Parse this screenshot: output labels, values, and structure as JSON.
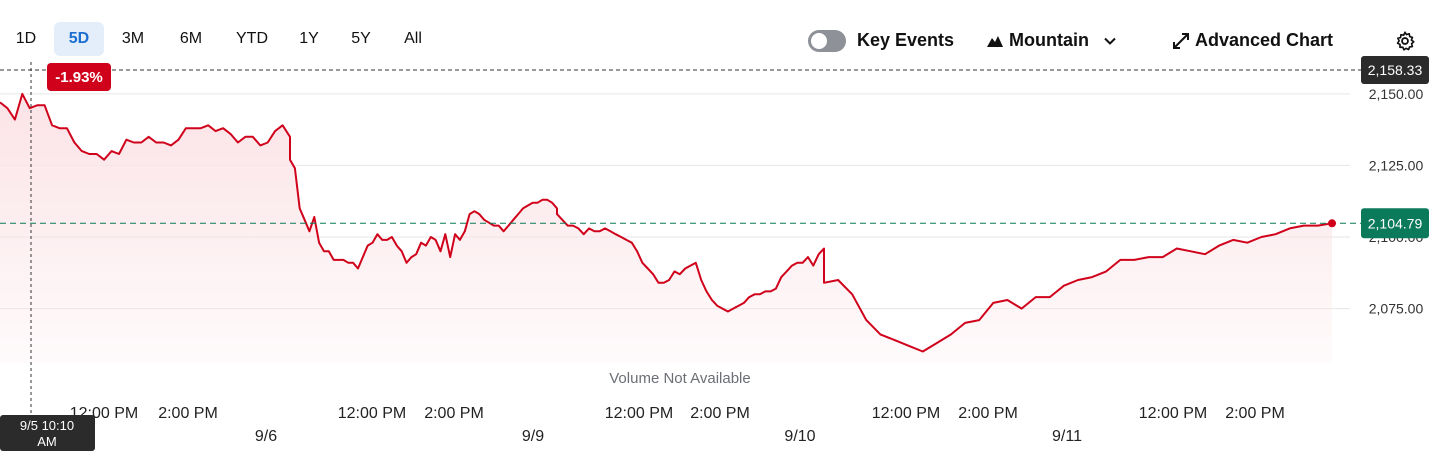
{
  "toolbar": {
    "ranges": [
      "1D",
      "5D",
      "3M",
      "6M",
      "YTD",
      "1Y",
      "5Y",
      "All"
    ],
    "active_range": "5D",
    "key_events_label": "Key Events",
    "chart_type_label": "Mountain",
    "advanced_chart_label": "Advanced Chart",
    "icons": [
      "toggle-switch",
      "mountain-icon",
      "chevron-down-icon",
      "expand-arrows-icon",
      "gear-icon"
    ]
  },
  "colors": {
    "line": "#d0021b",
    "fill": "#fbe3e6",
    "current_badge": "#0b7a5a",
    "change_badge": "#d0021b",
    "hover_badge": "#2b2b2b",
    "active_tab_bg": "#e3eefa",
    "active_tab_text": "#1a6fd0"
  },
  "chart_data": {
    "type": "area",
    "x_axis_type": "time",
    "y_range": [
      2056,
      2158.33
    ],
    "y_ticks": [
      "2,150.00",
      "2,125.00",
      "2,100.00",
      "2,075.00"
    ],
    "day_labels": [
      "9/6",
      "9/9",
      "9/10",
      "9/11"
    ],
    "time_labels": [
      "12:00 PM",
      "2:00 PM"
    ],
    "reference_line_value": 2158.33,
    "reference_label": "2,158.33",
    "current_value": 2104.79,
    "current_label": "2,104.79",
    "change_pct": "-1.93%",
    "hover_time": "9/5 10:10 AM",
    "volume_note": "Volume Not Available",
    "days": [
      {
        "date": "9/5",
        "values": [
          2147,
          2145,
          2141,
          2150,
          2145,
          2146,
          2146,
          2139,
          2138,
          2138,
          2133,
          2130,
          2129,
          2129,
          2127,
          2130,
          2129,
          2134,
          2133,
          2133,
          2135,
          2133,
          2133,
          2132,
          2134,
          2138,
          2138,
          2138,
          2139,
          2137,
          2138,
          2136,
          2133,
          2135,
          2135,
          2132,
          2133,
          2137,
          2139,
          2135
        ]
      },
      {
        "date": "9/6",
        "values": [
          2127,
          2124,
          2110,
          2106,
          2102,
          2107,
          2098,
          2095,
          2095,
          2092,
          2092,
          2092,
          2091,
          2091,
          2089,
          2093,
          2097,
          2098,
          2101,
          2099,
          2099,
          2100,
          2097,
          2095,
          2091,
          2093,
          2094,
          2098,
          2097,
          2100,
          2099,
          2095,
          2101,
          2093,
          2101,
          2099,
          2102,
          2108,
          2109,
          2108,
          2106,
          2105,
          2104,
          2104,
          2102,
          2104,
          2106,
          2108,
          2110,
          2111,
          2112,
          2112,
          2113,
          2113,
          2112,
          2110
        ]
      },
      {
        "date": "9/9",
        "values": [
          2108,
          2106,
          2104,
          2104,
          2103,
          2101,
          2103,
          2102,
          2102,
          2103,
          2102,
          2101,
          2100,
          2099,
          2098,
          2095,
          2091,
          2089,
          2087,
          2084,
          2084,
          2085,
          2088,
          2087,
          2089,
          2090,
          2091,
          2085,
          2081,
          2078,
          2076,
          2075,
          2074,
          2075,
          2076,
          2077,
          2079,
          2080,
          2080,
          2081,
          2081,
          2082,
          2086,
          2088,
          2090,
          2091,
          2091,
          2093,
          2090,
          2094,
          2096
        ]
      },
      {
        "date": "9/10",
        "values": [
          2084,
          2085,
          2080,
          2071,
          2066,
          2064,
          2062,
          2060,
          2063,
          2066,
          2070,
          2071,
          2077,
          2078,
          2075,
          2079,
          2079,
          2083,
          2085,
          2086,
          2088,
          2092,
          2092,
          2093,
          2093,
          2096,
          2095,
          2094,
          2097,
          2099,
          2098,
          2100,
          2101,
          2103,
          2104,
          2104,
          2104.79
        ]
      }
    ]
  }
}
